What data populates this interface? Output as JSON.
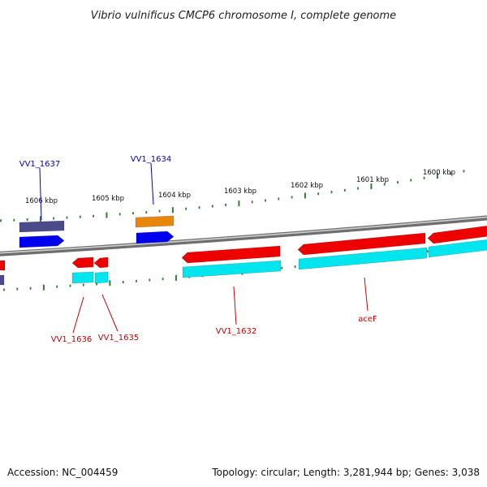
{
  "title": "Vibrio vulnificus CMCP6 chromosome I, complete genome",
  "footer": {
    "accession": "Accession: NC_004459",
    "summary": "Topology: circular; Length: 3,281,944 bp; Genes: 3,038"
  },
  "colors": {
    "backbone": "#8c8c8c",
    "tick": "#2e7d32",
    "forward_gene": "#0000ee",
    "forward_label": "#0000cc",
    "forward_alt": "#4b4a8a",
    "forward_orange": "#e8860c",
    "reverse_gene": "#ee0000",
    "reverse_label": "#cc0000",
    "reverse_cds": "#00e5ee"
  },
  "kbp_labels": [
    "1606 kbp",
    "1605 kbp",
    "1604 kbp",
    "1603 kbp",
    "1602 kbp",
    "1601 kbp",
    "1600 kbp"
  ],
  "gene_labels": {
    "forward": [
      "VV1_1637",
      "VV1_1634"
    ],
    "reverse": [
      "VV1_1636",
      "VV1_1635",
      "VV1_1632",
      "aceF"
    ]
  }
}
